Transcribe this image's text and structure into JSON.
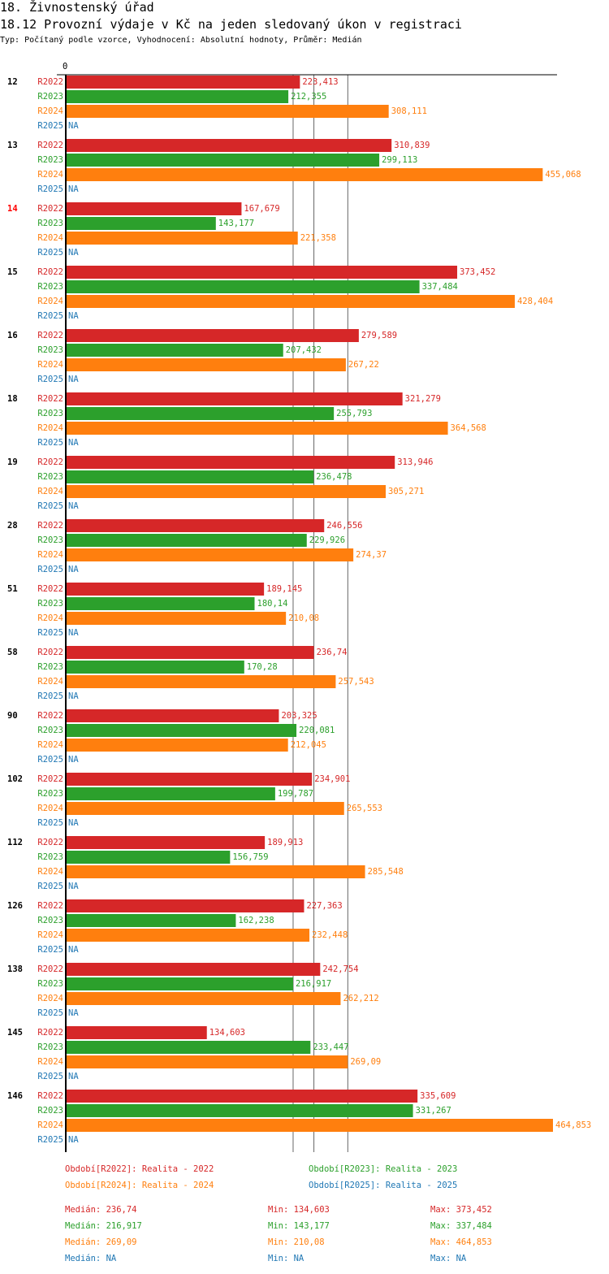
{
  "header": {
    "title": "18. Živnostenský úřad",
    "subtitle": "18.12 Provozní výdaje v Kč na jeden sledovaný úkon v registraci",
    "info": "Typ: Počítaný podle vzorce, Vyhodnocení: Absolutní hodnoty, Průměr: Medián"
  },
  "chart_data": {
    "type": "bar",
    "orientation": "horizontal",
    "axis_zero_label": "0",
    "xlim": [
      0,
      464.853
    ],
    "series_names": [
      "R2022",
      "R2023",
      "R2024",
      "R2025"
    ],
    "colors": [
      "#d62728",
      "#2ca02c",
      "#ff7f0e",
      "#1f77b4"
    ],
    "na_label": "NA",
    "categories": [
      "12",
      "13",
      "14",
      "15",
      "16",
      "18",
      "19",
      "28",
      "51",
      "58",
      "90",
      "102",
      "112",
      "126",
      "138",
      "145",
      "146"
    ],
    "highlight_category": "14",
    "highlight_color": "#ff0000",
    "series": [
      {
        "name": "R2022",
        "values": [
          223.413,
          310.839,
          167.679,
          373.452,
          279.589,
          321.279,
          313.946,
          246.556,
          189.145,
          236.74,
          203.325,
          234.901,
          189.913,
          227.363,
          242.754,
          134.603,
          335.609
        ],
        "labels": [
          "223,413",
          "310,839",
          "167,679",
          "373,452",
          "279,589",
          "321,279",
          "313,946",
          "246,556",
          "189,145",
          "236,74",
          "203,325",
          "234,901",
          "189,913",
          "227,363",
          "242,754",
          "134,603",
          "335,609"
        ]
      },
      {
        "name": "R2023",
        "values": [
          212.355,
          299.113,
          143.177,
          337.484,
          207.432,
          255.793,
          236.478,
          229.926,
          180.14,
          170.28,
          220.081,
          199.787,
          156.759,
          162.238,
          216.917,
          233.447,
          331.267
        ],
        "labels": [
          "212,355",
          "299,113",
          "143,177",
          "337,484",
          "207,432",
          "255,793",
          "236,478",
          "229,926",
          "180,14",
          "170,28",
          "220,081",
          "199,787",
          "156,759",
          "162,238",
          "216,917",
          "233,447",
          "331,267"
        ]
      },
      {
        "name": "R2024",
        "values": [
          308.111,
          455.068,
          221.358,
          428.404,
          267.22,
          364.568,
          305.271,
          274.37,
          210.08,
          257.543,
          212.045,
          265.553,
          285.548,
          232.448,
          262.212,
          269.09,
          464.853
        ],
        "labels": [
          "308,111",
          "455,068",
          "221,358",
          "428,404",
          "267,22",
          "364,568",
          "305,271",
          "274,37",
          "210,08",
          "257,543",
          "212,045",
          "265,553",
          "285,548",
          "232,448",
          "262,212",
          "269,09",
          "464,853"
        ]
      },
      {
        "name": "R2025",
        "values": [
          null,
          null,
          null,
          null,
          null,
          null,
          null,
          null,
          null,
          null,
          null,
          null,
          null,
          null,
          null,
          null,
          null
        ]
      }
    ],
    "median_lines": [
      236.74,
      216.917,
      269.09
    ]
  },
  "legend": [
    "Období[R2022]: Realita - 2022",
    "Období[R2023]: Realita - 2023",
    "Období[R2024]: Realita - 2024",
    "Období[R2025]: Realita - 2025"
  ],
  "stats": [
    {
      "median": "Medián: 236,74",
      "min": "Min: 134,603",
      "max": "Max: 373,452"
    },
    {
      "median": "Medián: 216,917",
      "min": "Min: 143,177",
      "max": "Max: 337,484"
    },
    {
      "median": "Medián: 269,09",
      "min": "Min: 210,08",
      "max": "Max: 464,853"
    },
    {
      "median": "Medián: NA",
      "min": "Min: NA",
      "max": "Max: NA"
    }
  ]
}
